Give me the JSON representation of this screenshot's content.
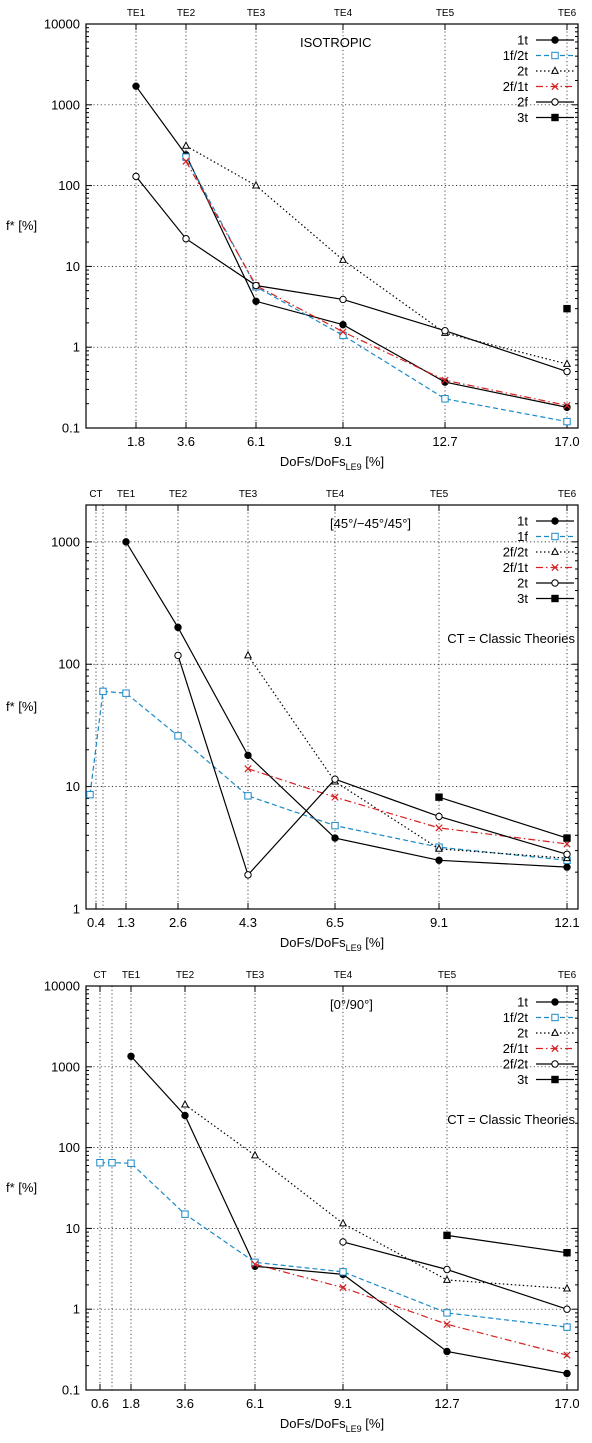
{
  "chart_data": [
    {
      "type": "line",
      "title": "ISOTROPIC",
      "note": "",
      "xlabel": "DoFs/DoFs",
      "xlabel_sub": "LE9",
      "xlabel_suffix": " [%]",
      "ylabel": "f* [%]",
      "yscale": "log",
      "ylim": [
        0.1,
        10000
      ],
      "yticks": [
        "0.1",
        "1",
        "10",
        "100",
        "1000",
        "10000"
      ],
      "xticks": [
        "1.8",
        "3.6",
        "6.1",
        "9.1",
        "12.7",
        "17.0"
      ],
      "top_labels": [
        "TE1",
        "TE2",
        "TE3",
        "TE4",
        "TE5",
        "TE6"
      ],
      "legend_position": "top-right",
      "series": [
        {
          "name": "1t",
          "color": "#000000",
          "dash": "solid",
          "marker": "filled-circle",
          "points": [
            [
              1.8,
              1700
            ],
            [
              3.6,
              240
            ],
            [
              6.1,
              3.7
            ],
            [
              9.1,
              1.9
            ],
            [
              12.7,
              0.37
            ],
            [
              17.0,
              0.18
            ]
          ]
        },
        {
          "name": "1f/2t",
          "color": "#1b8ac7",
          "dash": "dashed",
          "marker": "open-square",
          "points": [
            [
              3.6,
              225
            ],
            [
              6.1,
              5.6
            ],
            [
              9.1,
              1.4
            ],
            [
              12.7,
              0.23
            ],
            [
              17.0,
              0.12
            ]
          ]
        },
        {
          "name": "2t",
          "color": "#000000",
          "dash": "dotted",
          "marker": "open-triangle",
          "points": [
            [
              3.6,
              310
            ],
            [
              6.1,
              100
            ],
            [
              9.1,
              12
            ],
            [
              12.7,
              1.5
            ],
            [
              17.0,
              0.62
            ]
          ]
        },
        {
          "name": "2f/1t",
          "color": "#d62020",
          "dash": "dashdot",
          "marker": "cross",
          "points": [
            [
              3.6,
              200
            ],
            [
              6.1,
              5.8
            ],
            [
              9.1,
              1.55
            ],
            [
              12.7,
              0.39
            ],
            [
              17.0,
              0.19
            ]
          ]
        },
        {
          "name": "2f",
          "color": "#000000",
          "dash": "solid",
          "marker": "open-circle",
          "points": [
            [
              1.8,
              130
            ],
            [
              3.6,
              22
            ],
            [
              6.1,
              5.8
            ],
            [
              9.1,
              3.9
            ],
            [
              12.7,
              1.6
            ],
            [
              17.0,
              0.5
            ]
          ]
        },
        {
          "name": "3t",
          "color": "#000000",
          "dash": "solid",
          "marker": "filled-square",
          "points": [
            [
              17.0,
              3.0
            ]
          ]
        }
      ]
    },
    {
      "type": "line",
      "title": "[45°/−45°/45°]",
      "note": "CT = Classic Theories",
      "xlabel": "DoFs/DoFs",
      "xlabel_sub": "LE9",
      "xlabel_suffix": " [%]",
      "ylabel": "f* [%]",
      "yscale": "log",
      "ylim": [
        1,
        2000
      ],
      "yticks": [
        "1",
        "10",
        "100",
        "1000"
      ],
      "xticks": [
        "0.4",
        "1.3",
        "2.6",
        "4.3",
        "6.5",
        "9.1",
        "12.1"
      ],
      "top_labels": [
        "CT",
        "TE1",
        "TE2",
        "TE3",
        "TE4",
        "TE5",
        "TE6"
      ],
      "legend_position": "top-right",
      "series": [
        {
          "name": "1t",
          "color": "#000000",
          "dash": "solid",
          "marker": "filled-circle",
          "points": [
            [
              1.3,
              1000
            ],
            [
              2.6,
              200
            ],
            [
              4.3,
              18
            ],
            [
              6.5,
              3.8
            ],
            [
              9.1,
              2.5
            ],
            [
              12.1,
              2.2
            ]
          ]
        },
        {
          "name": "1f",
          "color": "#1b8ac7",
          "dash": "dashed",
          "marker": "open-square",
          "points": [
            [
              0.35,
              8.6
            ],
            [
              0.75,
              60
            ],
            [
              1.3,
              58
            ],
            [
              2.6,
              26
            ],
            [
              4.3,
              8.4
            ],
            [
              6.5,
              4.8
            ],
            [
              9.1,
              3.2
            ],
            [
              12.1,
              2.5
            ]
          ]
        },
        {
          "name": "2f/2t",
          "color": "#000000",
          "dash": "dotted",
          "marker": "open-triangle",
          "points": [
            [
              4.3,
              118
            ],
            [
              6.5,
              11
            ],
            [
              9.1,
              3.1
            ],
            [
              12.1,
              2.6
            ]
          ]
        },
        {
          "name": "2f/1t",
          "color": "#d62020",
          "dash": "dashdot",
          "marker": "cross",
          "points": [
            [
              4.3,
              14
            ],
            [
              6.5,
              8.2
            ],
            [
              9.1,
              4.6
            ],
            [
              12.1,
              3.4
            ]
          ]
        },
        {
          "name": "2t",
          "color": "#000000",
          "dash": "solid",
          "marker": "open-circle",
          "points": [
            [
              2.6,
              118
            ],
            [
              4.3,
              1.9
            ],
            [
              6.5,
              11.5
            ],
            [
              9.1,
              5.7
            ],
            [
              12.1,
              2.8
            ]
          ]
        },
        {
          "name": "3t",
          "color": "#000000",
          "dash": "solid",
          "marker": "filled-square",
          "points": [
            [
              9.1,
              8.2
            ],
            [
              12.1,
              3.8
            ]
          ]
        }
      ]
    },
    {
      "type": "line",
      "title": "[0°/90°]",
      "note": "CT = Classic Theories",
      "xlabel": "DoFs/DoFs",
      "xlabel_sub": "LE9",
      "xlabel_suffix": " [%]",
      "ylabel": "f* [%]",
      "yscale": "log",
      "ylim": [
        0.1,
        10000
      ],
      "yticks": [
        "0.1",
        "1",
        "10",
        "100",
        "1000",
        "10000"
      ],
      "xticks": [
        "0.6",
        "1.8",
        "3.6",
        "6.1",
        "9.1",
        "12.7",
        "17.0"
      ],
      "top_labels": [
        "CT",
        "TE1",
        "TE2",
        "TE3",
        "TE4",
        "TE5",
        "TE6"
      ],
      "legend_position": "top-right",
      "series": [
        {
          "name": "1t",
          "color": "#000000",
          "dash": "solid",
          "marker": "filled-circle",
          "points": [
            [
              1.8,
              1350
            ],
            [
              3.6,
              250
            ],
            [
              6.1,
              3.4
            ],
            [
              9.1,
              2.7
            ],
            [
              12.7,
              0.3
            ],
            [
              17.0,
              0.16
            ]
          ]
        },
        {
          "name": "1f/2t",
          "color": "#1b8ac7",
          "dash": "dashed",
          "marker": "open-square",
          "points": [
            [
              0.6,
              65
            ],
            [
              1.1,
              65
            ],
            [
              1.8,
              64
            ],
            [
              3.6,
              15
            ],
            [
              6.1,
              3.8
            ],
            [
              9.1,
              2.9
            ],
            [
              12.7,
              0.9
            ],
            [
              17.0,
              0.6
            ]
          ]
        },
        {
          "name": "2t",
          "color": "#000000",
          "dash": "dotted",
          "marker": "open-triangle",
          "points": [
            [
              3.6,
              340
            ],
            [
              6.1,
              80
            ],
            [
              9.1,
              11.5
            ],
            [
              12.7,
              2.3
            ],
            [
              17.0,
              1.8
            ]
          ]
        },
        {
          "name": "2f/1t",
          "color": "#d62020",
          "dash": "dashdot",
          "marker": "cross",
          "points": [
            [
              6.1,
              3.6
            ],
            [
              9.1,
              1.85
            ],
            [
              12.7,
              0.65
            ],
            [
              17.0,
              0.27
            ]
          ]
        },
        {
          "name": "2f/2t",
          "color": "#000000",
          "dash": "solid",
          "marker": "open-circle",
          "points": [
            [
              9.1,
              6.8
            ],
            [
              12.7,
              3.1
            ],
            [
              17.0,
              1.0
            ]
          ]
        },
        {
          "name": "3t",
          "color": "#000000",
          "dash": "solid",
          "marker": "filled-square",
          "points": [
            [
              12.7,
              8.2
            ],
            [
              17.0,
              5.0
            ]
          ]
        }
      ]
    }
  ]
}
